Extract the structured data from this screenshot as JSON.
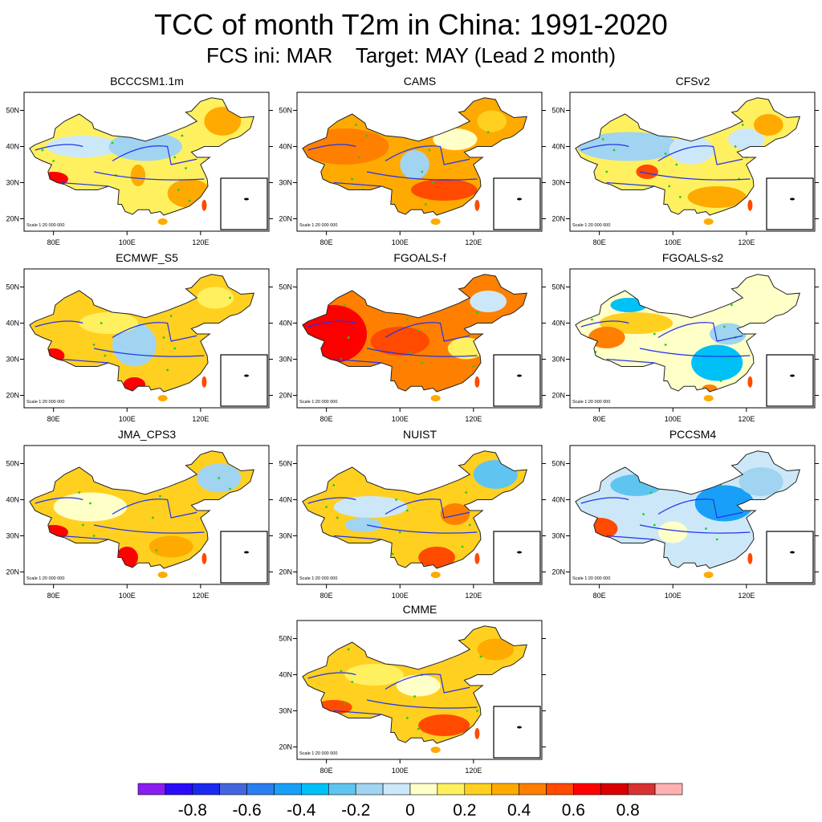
{
  "title": "TCC of month T2m in China: 1991-2020",
  "subtitle": "FCS ini: MAR    Target: MAY (Lead 2 month)",
  "chart_data": {
    "type": "heatmap",
    "title": "TCC of month T2m in China: 1991-2020",
    "subtitle": "FCS ini: MAR    Target: MAY (Lead 2 month)",
    "panels": [
      "BCCCSM1.1m",
      "CAMS",
      "CFSv2",
      "ECMWF_S5",
      "FGOALS-f",
      "FGOALS-s2",
      "JMA_CPS3",
      "NUIST",
      "PCCSM4",
      "CMME"
    ],
    "x_ticks": [
      "80E",
      "100E",
      "120E"
    ],
    "y_ticks": [
      "50N",
      "40N",
      "30N",
      "20N"
    ],
    "scale_text": "Scale 1:20 000 000",
    "colorbar": {
      "levels": [
        -0.9,
        -0.8,
        -0.7,
        -0.6,
        -0.5,
        -0.4,
        -0.3,
        -0.2,
        -0.1,
        0,
        0.1,
        0.2,
        0.3,
        0.4,
        0.5,
        0.6,
        0.7,
        0.8,
        0.9
      ],
      "labels": [
        "-0.8",
        "-0.6",
        "-0.4",
        "-0.2",
        "0",
        "0.2",
        "0.4",
        "0.6",
        "0.8"
      ],
      "colors": [
        "#8a1ef0",
        "#2a0cf8",
        "#1a2af0",
        "#4466dd",
        "#2a7ef0",
        "#18a0f8",
        "#00c0f8",
        "#60c4f0",
        "#a0d4f0",
        "#cce8f8",
        "#ffffc8",
        "#fff060",
        "#ffd020",
        "#ffaa00",
        "#ff8000",
        "#ff4a00",
        "#ff0000",
        "#d80000",
        "#d83232",
        "#ffb0b0"
      ]
    }
  }
}
